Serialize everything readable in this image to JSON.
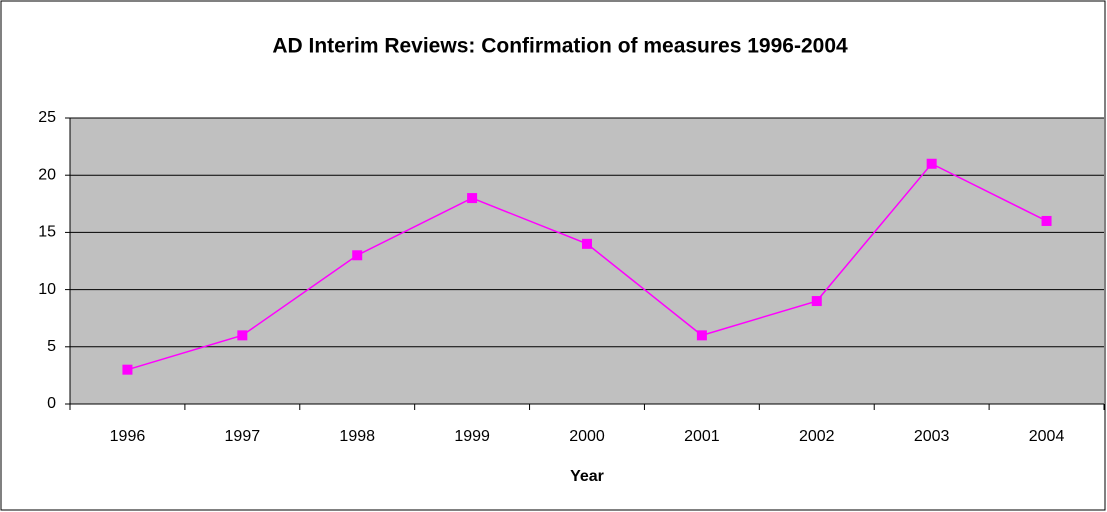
{
  "chart_data": {
    "type": "line",
    "title": "AD Interim Reviews: Confirmation of measures 1996-2004",
    "x_label": "Year",
    "categories": [
      "1996",
      "1997",
      "1998",
      "1999",
      "2000",
      "2001",
      "2002",
      "2003",
      "2004"
    ],
    "series": [
      {
        "name": "Confirmation of measures",
        "color": "#ff00ff",
        "values": [
          3,
          6,
          13,
          18,
          14,
          6,
          9,
          21,
          16
        ]
      }
    ],
    "ylim": [
      0,
      25
    ],
    "yticks": [
      0,
      5,
      10,
      15,
      20,
      25
    ],
    "grid": true,
    "legend": false,
    "plot_background": "#c0c0c0"
  }
}
